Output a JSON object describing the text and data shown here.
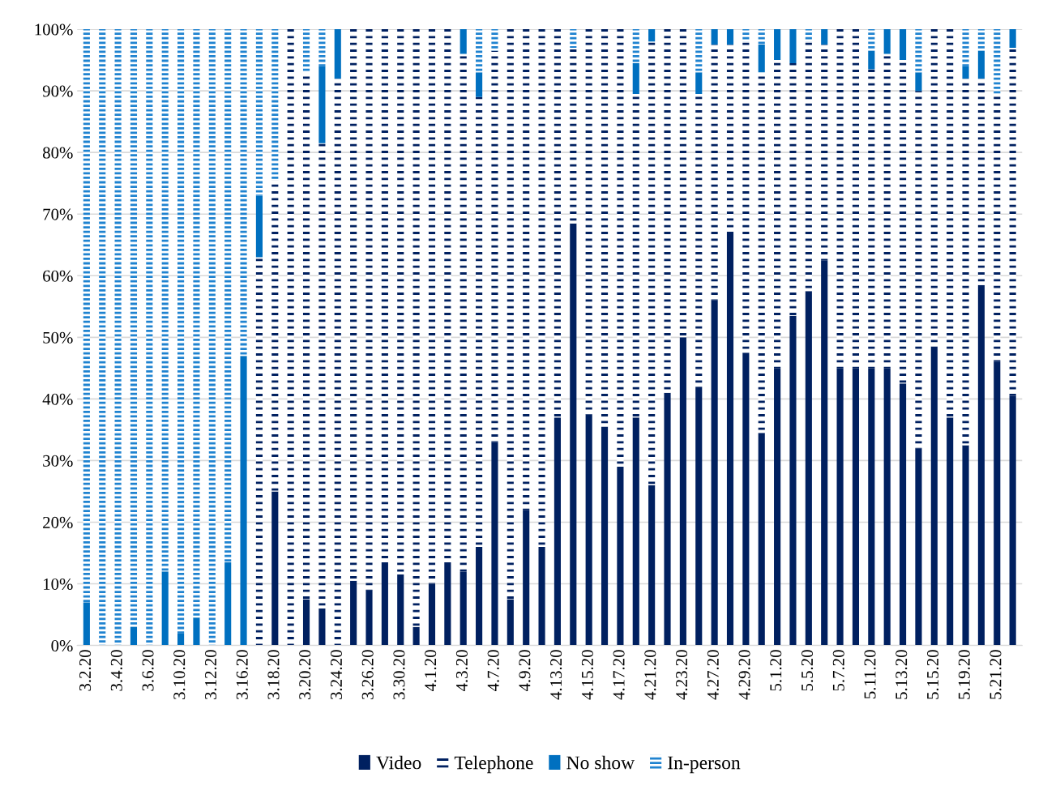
{
  "chart_data": {
    "type": "bar",
    "stacked": true,
    "categories": [
      "3.2.20",
      null,
      "3.4.20",
      null,
      "3.6.20",
      null,
      "3.10.20",
      null,
      "3.12.20",
      null,
      "3.16.20",
      null,
      "3.18.20",
      null,
      "3.20.20",
      null,
      "3.24.20",
      null,
      "3.26.20",
      null,
      "3.30.20",
      null,
      "4.1.20",
      null,
      "4.3.20",
      null,
      "4.7.20",
      null,
      "4.9.20",
      null,
      "4.13.20",
      null,
      "4.15.20",
      null,
      "4.17.20",
      null,
      "4.21.20",
      null,
      "4.23.20",
      null,
      "4.27.20",
      null,
      "4.29.20",
      null,
      "5.1.20",
      null,
      "5.5.20",
      null,
      "5.7.20",
      null,
      "5.11.20",
      null,
      "5.13.20",
      null,
      "5.15.20",
      null,
      "5.19.20",
      null,
      "5.21.20",
      null
    ],
    "series": [
      {
        "name": "Video",
        "color": "#002060",
        "values": [
          0,
          0,
          0,
          0,
          0,
          0,
          0,
          0,
          0,
          0,
          0,
          0,
          25,
          0,
          7.5,
          6,
          0,
          10.5,
          9,
          13.5,
          11.5,
          3,
          10,
          13.5,
          12,
          16,
          33,
          7.5,
          22,
          16,
          37,
          68.5,
          37.5,
          35.5,
          29,
          37,
          26,
          41,
          50,
          42,
          56,
          67,
          47.5,
          34.5,
          45,
          53.5,
          57.5,
          62.5,
          45,
          45,
          45,
          45,
          42.5,
          32,
          48.5,
          37,
          32.5,
          58.5,
          46,
          40.5
        ]
      },
      {
        "name": "Telephone",
        "color": "#002060",
        "line_style": "dashed",
        "values": [
          0,
          0,
          0,
          0,
          0,
          0,
          0,
          0,
          0,
          0,
          0,
          63,
          50.5,
          100,
          85.5,
          75.5,
          92,
          89.5,
          91,
          86.5,
          88.5,
          97,
          90,
          86.5,
          84,
          73,
          63.5,
          92.5,
          78,
          84,
          63,
          28.5,
          62.5,
          64.5,
          71,
          52.5,
          72,
          59,
          50,
          47.5,
          41.5,
          30.5,
          50.5,
          58.5,
          50,
          41,
          40.5,
          35,
          55,
          55,
          48.5,
          51,
          52.5,
          58,
          51.5,
          63,
          59.5,
          33.5,
          43.5,
          56.5
        ]
      },
      {
        "name": "No show",
        "color": "#0070c0",
        "values": [
          7,
          0,
          0,
          3,
          0,
          12,
          2,
          4.5,
          0,
          13.5,
          47,
          10,
          0,
          0,
          0,
          12.5,
          8,
          0,
          0,
          0,
          0,
          0,
          0,
          0,
          4,
          4,
          0,
          0,
          0,
          0,
          0,
          0,
          0,
          0,
          0,
          5,
          2,
          0,
          0,
          3.5,
          2.5,
          2.5,
          0,
          4.5,
          5,
          5.5,
          0,
          2.5,
          0,
          0,
          3,
          4,
          5,
          3,
          0,
          0,
          2,
          4.5,
          0,
          3
        ]
      },
      {
        "name": "In-person",
        "color": "#1f83d0",
        "line_style": "dotted",
        "values": [
          93,
          100,
          100,
          97,
          100,
          88,
          98,
          95.5,
          100,
          86.5,
          53,
          27,
          24.5,
          0,
          7,
          6,
          0,
          0,
          0,
          0,
          0,
          0,
          0,
          0,
          0,
          7,
          3.5,
          0,
          0,
          0,
          0,
          3,
          0,
          0,
          0,
          5.5,
          0,
          0,
          0,
          7,
          0,
          0,
          2,
          2.5,
          0,
          0,
          2,
          0,
          0,
          0,
          3.5,
          0,
          0,
          7,
          0,
          0,
          6,
          3.5,
          10.5,
          0
        ]
      }
    ],
    "ylim": [
      0,
      100
    ],
    "yticks": [
      {
        "value": 0,
        "label": "0%"
      },
      {
        "value": 10,
        "label": "10%"
      },
      {
        "value": 20,
        "label": "20%"
      },
      {
        "value": 30,
        "label": "30%"
      },
      {
        "value": 40,
        "label": "40%"
      },
      {
        "value": 50,
        "label": "50%"
      },
      {
        "value": 60,
        "label": "60%"
      },
      {
        "value": 70,
        "label": "70%"
      },
      {
        "value": 80,
        "label": "80%"
      },
      {
        "value": 90,
        "label": "90%"
      },
      {
        "value": 100,
        "label": "100%"
      }
    ],
    "grid": "y",
    "legend": "bottom"
  }
}
